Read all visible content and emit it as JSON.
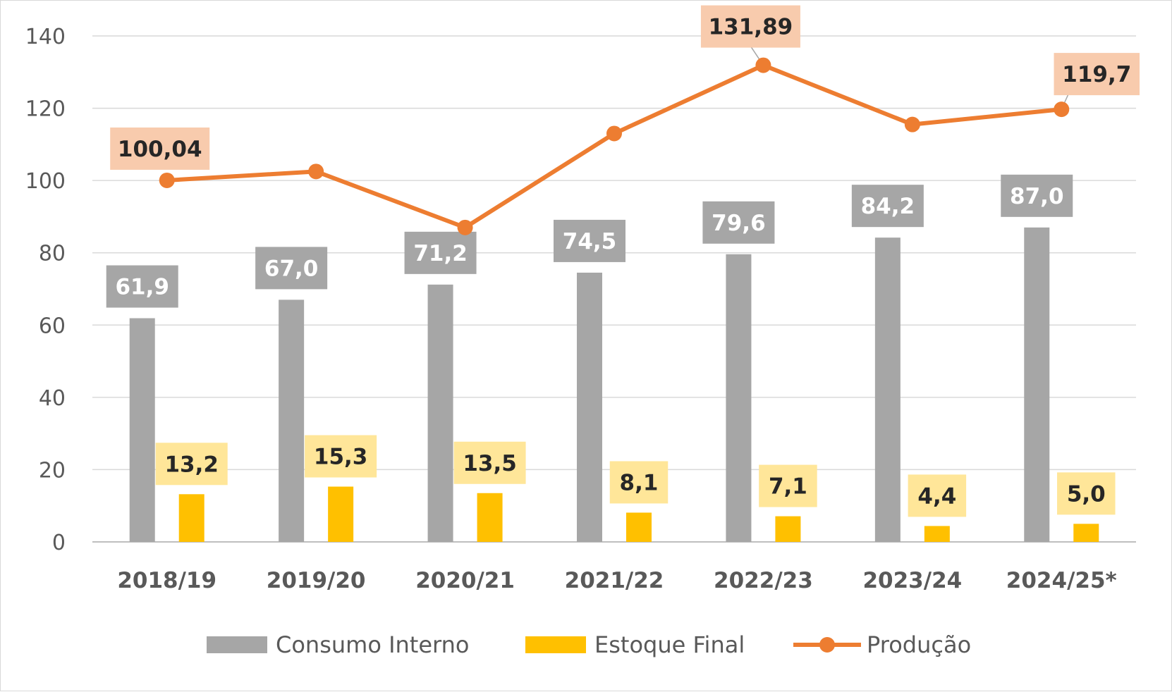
{
  "chart_data": {
    "type": "bar",
    "categories": [
      "2018/19",
      "2019/20",
      "2020/21",
      "2021/22",
      "2022/23",
      "2023/24",
      "2024/25*"
    ],
    "ylim": [
      0,
      140
    ],
    "yticks": [
      0,
      20,
      40,
      60,
      80,
      100,
      120,
      140
    ],
    "grid": true,
    "legend_position": "bottom",
    "series": [
      {
        "name": "Consumo Interno",
        "kind": "bar",
        "color": "#a6a6a6",
        "values": [
          61.9,
          67.0,
          71.2,
          74.5,
          79.6,
          84.2,
          87.0
        ],
        "labels": [
          "61,9",
          "67,0",
          "71,2",
          "74,5",
          "79,6",
          "84,2",
          "87,0"
        ]
      },
      {
        "name": "Estoque Final",
        "kind": "bar",
        "color": "#ffc000",
        "label_bg": "#ffe699",
        "values": [
          13.2,
          15.3,
          13.5,
          8.1,
          7.1,
          4.4,
          5.0
        ],
        "labels": [
          "13,2",
          "15,3",
          "13,5",
          "8,1",
          "7,1",
          "4,4",
          "5,0"
        ]
      },
      {
        "name": "Produção",
        "kind": "line",
        "color": "#ed7d31",
        "label_bg": "#f8cbad",
        "values": [
          100.04,
          102.5,
          87.0,
          113.0,
          131.89,
          115.5,
          119.7
        ],
        "labels": [
          "100,04",
          null,
          null,
          null,
          "131,89",
          null,
          "119,7"
        ]
      }
    ]
  }
}
